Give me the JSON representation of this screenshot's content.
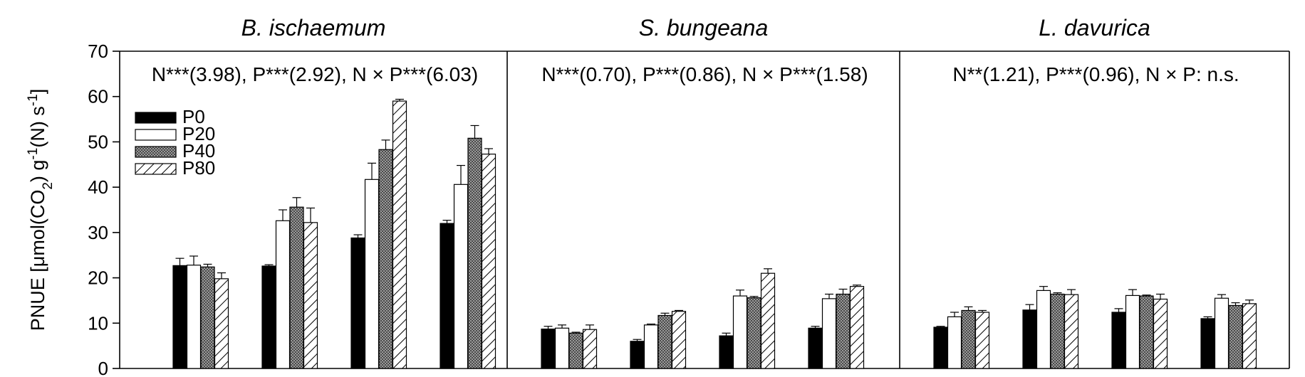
{
  "chart_data": {
    "type": "bar",
    "ylabel": "PNUE [μmol(CO₂) g⁻¹(N) s⁻¹]",
    "ylim": [
      0,
      70
    ],
    "yticks": [
      0,
      10,
      20,
      30,
      40,
      50,
      60,
      70
    ],
    "legend": {
      "position": "top-left of first panel",
      "entries": [
        "P0",
        "P20",
        "P40",
        "P80"
      ]
    },
    "series_styles": {
      "P0": {
        "fill": "#000000",
        "pattern": "solid"
      },
      "P20": {
        "fill": "#ffffff",
        "pattern": "none"
      },
      "P40": {
        "fill": "#777777",
        "pattern": "crosshatch"
      },
      "P80": {
        "fill": "#ffffff",
        "pattern": "diagonal"
      }
    },
    "panels": [
      {
        "title": "B. ischaemum",
        "stat_text": "N***(3.98), P***(2.92), N × P***(6.03)",
        "groups": 4,
        "series": [
          {
            "name": "P0",
            "values": [
              22.7,
              22.6,
              28.8,
              32.0
            ],
            "errors": [
              1.6,
              0.3,
              0.7,
              0.7
            ]
          },
          {
            "name": "P20",
            "values": [
              22.8,
              32.6,
              41.7,
              40.6
            ],
            "errors": [
              2.0,
              2.4,
              3.6,
              4.2
            ]
          },
          {
            "name": "P40",
            "values": [
              22.4,
              35.6,
              48.3,
              50.8
            ],
            "errors": [
              0.6,
              2.1,
              2.1,
              2.8
            ]
          },
          {
            "name": "P80",
            "values": [
              19.8,
              32.2,
              59.0,
              47.3
            ],
            "errors": [
              1.3,
              3.2,
              0.4,
              1.2
            ]
          }
        ]
      },
      {
        "title": "S. bungeana",
        "stat_text": "N***(0.70), P***(0.86), N × P***(1.58)",
        "groups": 4,
        "series": [
          {
            "name": "P0",
            "values": [
              8.7,
              6.0,
              7.2,
              8.9
            ],
            "errors": [
              0.6,
              0.4,
              0.6,
              0.4
            ]
          },
          {
            "name": "P20",
            "values": [
              8.9,
              9.6,
              16.0,
              15.4
            ],
            "errors": [
              0.7,
              0.2,
              1.3,
              1.0
            ]
          },
          {
            "name": "P40",
            "values": [
              7.8,
              11.7,
              15.6,
              16.4
            ],
            "errors": [
              0.2,
              0.5,
              0.3,
              1.1
            ]
          },
          {
            "name": "P80",
            "values": [
              8.6,
              12.6,
              21.0,
              18.1
            ],
            "errors": [
              1.0,
              0.2,
              1.0,
              0.3
            ]
          }
        ]
      },
      {
        "title": "L. davurica",
        "stat_text": "N**(1.21), P***(0.96), N × P: n.s.",
        "groups": 4,
        "series": [
          {
            "name": "P0",
            "values": [
              9.1,
              12.9,
              12.4,
              11.0
            ],
            "errors": [
              0.2,
              1.2,
              0.8,
              0.4
            ]
          },
          {
            "name": "P20",
            "values": [
              11.4,
              17.2,
              16.1,
              15.5
            ],
            "errors": [
              1.0,
              0.9,
              1.3,
              0.8
            ]
          },
          {
            "name": "P40",
            "values": [
              12.8,
              16.4,
              16.0,
              13.9
            ],
            "errors": [
              0.8,
              0.3,
              0.2,
              0.6
            ]
          },
          {
            "name": "P80",
            "values": [
              12.4,
              16.3,
              15.3,
              14.3
            ],
            "errors": [
              0.4,
              1.1,
              1.1,
              0.8
            ]
          }
        ]
      }
    ]
  }
}
